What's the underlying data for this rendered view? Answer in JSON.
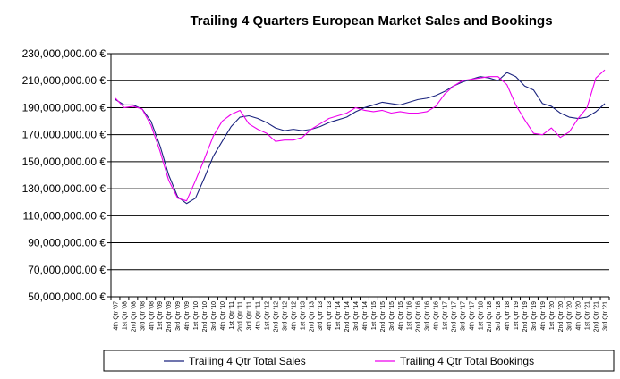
{
  "chart_data": {
    "type": "line",
    "title": "Trailing 4 Quarters European Market Sales and Bookings",
    "xlabel": "",
    "ylabel": "",
    "ylim": [
      50000000,
      230000000
    ],
    "y_ticks": [
      {
        "value": 50000000,
        "label": "50,000,000.00  €"
      },
      {
        "value": 70000000,
        "label": "70,000,000.00  €"
      },
      {
        "value": 90000000,
        "label": "90,000,000.00  €"
      },
      {
        "value": 110000000,
        "label": "110,000,000.00  €"
      },
      {
        "value": 130000000,
        "label": "130,000,000.00  €"
      },
      {
        "value": 150000000,
        "label": "150,000,000.00  €"
      },
      {
        "value": 170000000,
        "label": "170,000,000.00  €"
      },
      {
        "value": 190000000,
        "label": "190,000,000.00  €"
      },
      {
        "value": 210000000,
        "label": "210,000,000.00  €"
      },
      {
        "value": 230000000,
        "label": "230,000,000.00  €"
      }
    ],
    "grid": true,
    "legend_position": "bottom",
    "categories": [
      "4th Qtr '07",
      "1st Qtr '08",
      "2nd Qtr '08",
      "3rd Qtr '08",
      "4th Qtr '08",
      "1st Qtr '09",
      "2nd Qtr '09",
      "3rd Qtr '09",
      "4th Qtr '09",
      "1st Qtr '10",
      "2nd Qtr '10",
      "3rd Qtr '10",
      "4th Qtr '10",
      "1st Qtr '11",
      "2nd Qtr '11",
      "3rd Qtr '11",
      "4th Qtr '11",
      "1st Qtr '12",
      "2nd Qtr '12",
      "3rd Qtr '12",
      "4th Qtr '12",
      "1st Qtr '13",
      "2nd Qtr '13",
      "3rd Qtr '13",
      "4th Qtr '13",
      "1st Qtr '14",
      "2nd Qtr '14",
      "3rd Qtr '14",
      "4th Qtr '14",
      "1st Qtr '15",
      "2nd Qtr '15",
      "3rd Qtr '15",
      "4th Qtr '15",
      "1st Qtr '16",
      "2nd Qtr '16",
      "3rd Qtr '16",
      "4th Qtr '16",
      "1st Qtr '17",
      "2nd Qtr '17",
      "3rd Qtr '17",
      "4th Qtr '17",
      "1st Qtr '18",
      "2nd Qtr '18",
      "3rd Qtr '18",
      "4th Qtr '18",
      "1st Qtr '19",
      "2nd Qtr '19",
      "3rd Qtr '19",
      "4th Qtr '19",
      "1st Qtr '20",
      "2nd Qtr '20",
      "3rd Qtr '20",
      "4th Qtr '20",
      "1st Qtr '21",
      "2nd Qtr '21",
      "3rd Qtr '21"
    ],
    "series": [
      {
        "name": "Trailing 4 Qtr Total Sales",
        "color": "#1a237e",
        "values": [
          196,
          192,
          192,
          189,
          180,
          162,
          140,
          124,
          119,
          123,
          138,
          154,
          165,
          176,
          183,
          184,
          182,
          179,
          175,
          173,
          174,
          173,
          174,
          176,
          179,
          181,
          183,
          187,
          190,
          192,
          194,
          193,
          192,
          194,
          196,
          197,
          199,
          202,
          206,
          209,
          211,
          213,
          212,
          210,
          216,
          213,
          206,
          203,
          193,
          191,
          186,
          183,
          182,
          183,
          187,
          193
        ]
      },
      {
        "name": "Trailing 4 Qtr Total Bookings",
        "color": "#ee00ee",
        "values": [
          197,
          190,
          191,
          189,
          177,
          158,
          136,
          123,
          121,
          136,
          152,
          169,
          180,
          185,
          188,
          178,
          174,
          171,
          165,
          166,
          166,
          168,
          174,
          178,
          182,
          184,
          186,
          190,
          188,
          187,
          188,
          186,
          187,
          186,
          186,
          187,
          191,
          200,
          206,
          210,
          211,
          212,
          213,
          213,
          207,
          192,
          181,
          171,
          170,
          175,
          168,
          172,
          182,
          190,
          212,
          218
        ]
      }
    ]
  }
}
